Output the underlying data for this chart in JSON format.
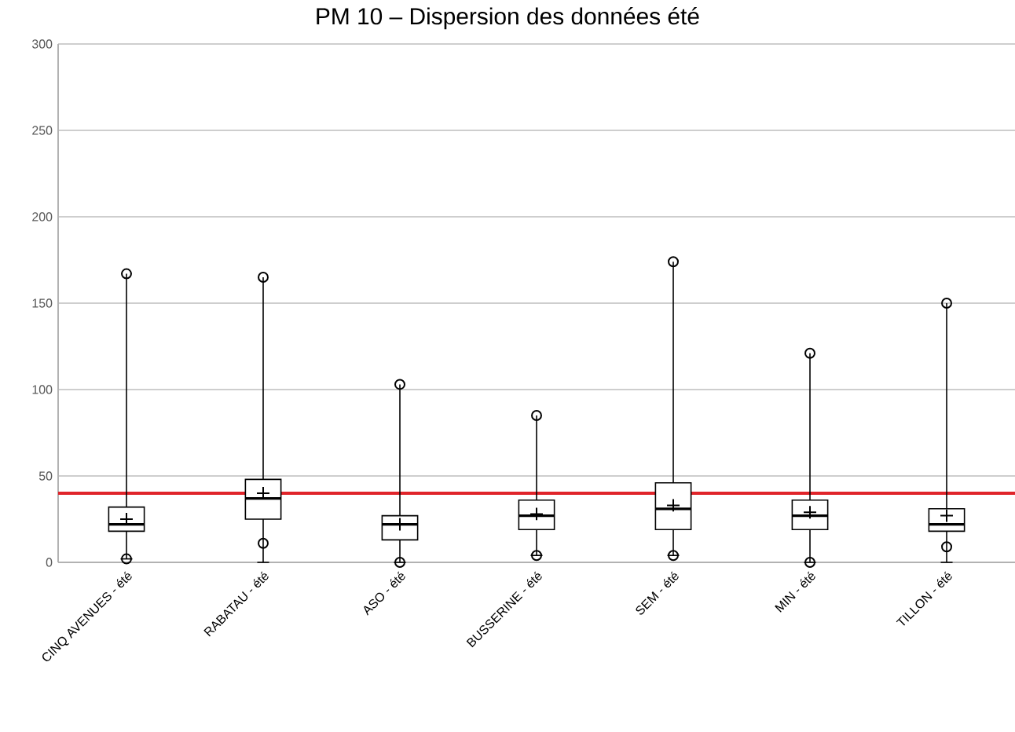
{
  "chart_data": {
    "type": "box",
    "title": "PM 10 – Dispersion des données été",
    "categories": [
      "CINQ AVENUES - été",
      "RABATAU - été",
      "ASO - été",
      "BUSSERINE - été",
      "SEM - été",
      "MIN - été",
      "TILLON - été"
    ],
    "boxes": [
      {
        "low": 2,
        "q1": 18,
        "median": 22,
        "q3": 32,
        "high": 167,
        "mean": 25,
        "outliers": [
          167,
          2
        ]
      },
      {
        "low": 0,
        "q1": 25,
        "median": 37,
        "q3": 48,
        "high": 165,
        "mean": 40,
        "outliers": [
          165,
          11
        ]
      },
      {
        "low": 0,
        "q1": 13,
        "median": 22,
        "q3": 27,
        "high": 103,
        "mean": 22,
        "outliers": [
          103,
          0
        ]
      },
      {
        "low": 4,
        "q1": 19,
        "median": 27,
        "q3": 36,
        "high": 85,
        "mean": 28,
        "outliers": [
          85,
          4
        ]
      },
      {
        "low": 4,
        "q1": 19,
        "median": 31,
        "q3": 46,
        "high": 174,
        "mean": 33,
        "outliers": [
          174,
          4
        ]
      },
      {
        "low": 0,
        "q1": 19,
        "median": 27,
        "q3": 36,
        "high": 121,
        "mean": 29,
        "outliers": [
          121,
          0
        ]
      },
      {
        "low": 0,
        "q1": 18,
        "median": 22,
        "q3": 31,
        "high": 150,
        "mean": 27,
        "outliers": [
          150,
          9
        ]
      }
    ],
    "color": "#000000",
    "ylim": [
      0,
      300
    ],
    "yticks": [
      0,
      50,
      100,
      150,
      200,
      250,
      300
    ],
    "grid": "y",
    "ref_lines": [
      {
        "axis": "y",
        "value": 40,
        "color": "#e0242a"
      }
    ]
  }
}
